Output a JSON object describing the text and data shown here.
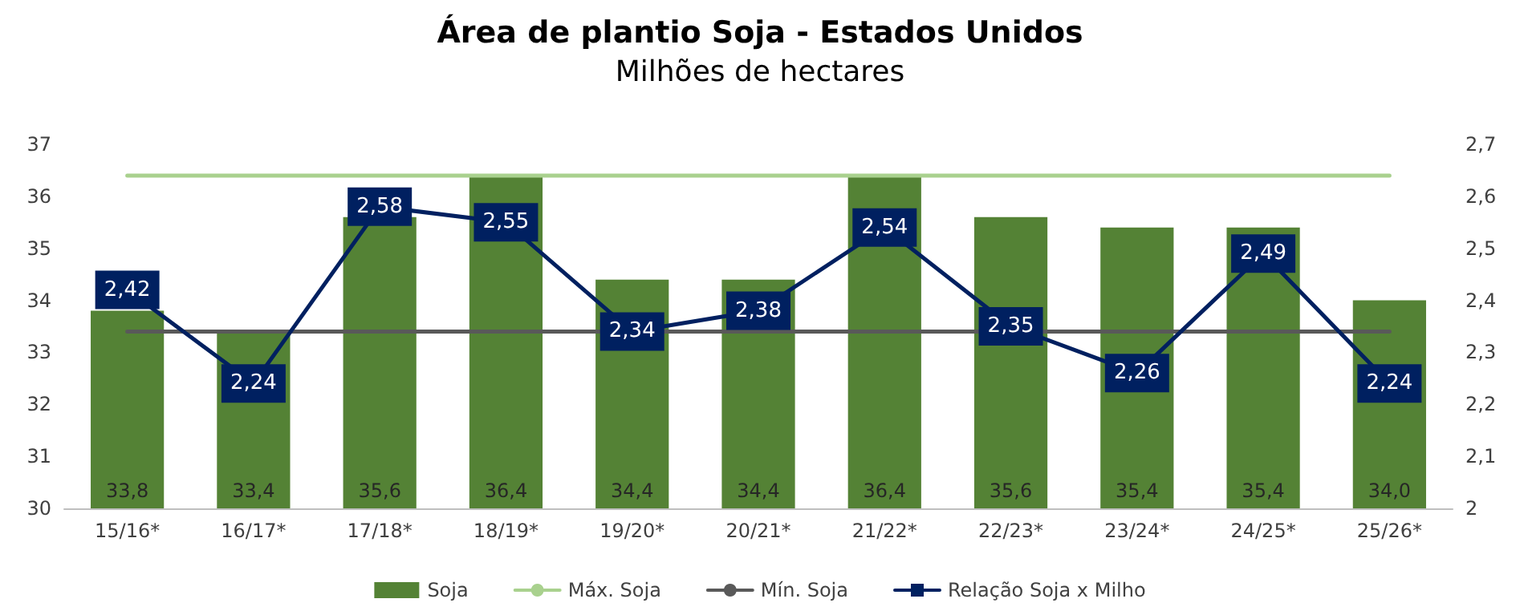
{
  "chart_data": {
    "type": "bar",
    "title": "Área de plantio Soja - Estados Unidos",
    "subtitle": "Milhões de hectares",
    "categories": [
      "15/16*",
      "16/17*",
      "17/18*",
      "18/19*",
      "19/20*",
      "20/21*",
      "21/22*",
      "22/23*",
      "23/24*",
      "24/25*",
      "25/26*"
    ],
    "series": [
      {
        "name": "Soja",
        "color": "#548235",
        "values": [
          33.8,
          33.4,
          35.6,
          36.4,
          34.4,
          34.4,
          36.4,
          35.6,
          35.4,
          35.4,
          34.0
        ],
        "value_labels": [
          "33,8",
          "33,4",
          "35,6",
          "36,4",
          "34,4",
          "34,4",
          "36,4",
          "35,6",
          "35,4",
          "35,4",
          "34,0"
        ]
      },
      {
        "name": "Máx. Soja",
        "type": "line",
        "color": "#a9d18e",
        "values": [
          36.4,
          36.4,
          36.4,
          36.4,
          36.4,
          36.4,
          36.4,
          36.4,
          36.4,
          36.4,
          36.4
        ]
      },
      {
        "name": "Mín. Soja",
        "type": "line",
        "color": "#595959",
        "values": [
          33.4,
          33.4,
          33.4,
          33.4,
          33.4,
          33.4,
          33.4,
          33.4,
          33.4,
          33.4,
          33.4
        ]
      },
      {
        "name": "Relação Soja x Milho",
        "type": "line",
        "axis": "y2",
        "marker": "square",
        "color": "#002060",
        "values": [
          2.42,
          2.24,
          2.58,
          2.55,
          2.34,
          2.38,
          2.54,
          2.35,
          2.26,
          2.49,
          2.24
        ],
        "value_labels": [
          "2,42",
          "2,24",
          "2,58",
          "2,55",
          "2,34",
          "2,38",
          "2,54",
          "2,35",
          "2,26",
          "2,49",
          "2,24"
        ]
      }
    ],
    "ylim": [
      30,
      37
    ],
    "yticks": [
      30,
      31,
      32,
      33,
      34,
      35,
      36,
      37
    ],
    "y2lim": [
      2,
      2.7
    ],
    "y2ticks": [
      2,
      {
        "value": 2.1,
        "label": "2,1"
      },
      {
        "value": 2.2,
        "label": "2,2"
      },
      {
        "value": 2.3,
        "label": "2,3"
      },
      {
        "value": 2.4,
        "label": "2,4"
      },
      {
        "value": 2.5,
        "label": "2,5"
      },
      {
        "value": 2.6,
        "label": "2,6"
      },
      {
        "value": 2.7,
        "label": "2,7"
      }
    ],
    "grid": false,
    "legend": "bottom",
    "marker": "none",
    "line_style": "solid"
  }
}
